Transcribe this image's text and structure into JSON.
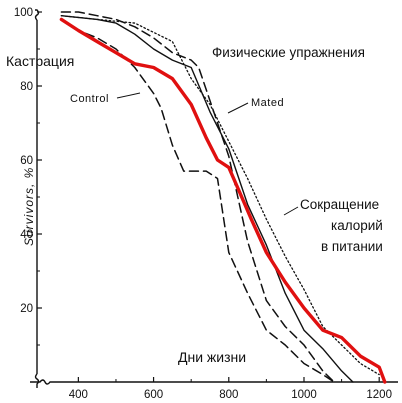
{
  "chart_data": {
    "type": "line",
    "title": "",
    "xlabel": "Дни жизни",
    "ylabel": "Survivors, %",
    "xlim": [
      290,
      1250
    ],
    "ylim": [
      0,
      100
    ],
    "x_ticks": [
      "400",
      "600",
      "800",
      "1000",
      "1200"
    ],
    "y_ticks": [
      "20",
      "40",
      "60",
      "80",
      "100"
    ],
    "grid": false,
    "series": [
      {
        "name": "Кастрация",
        "color": "#e01010",
        "style": "solid-thick",
        "x": [
          355,
          400,
          450,
          500,
          550,
          600,
          650,
          700,
          740,
          770,
          800,
          830,
          860,
          900,
          950,
          1000,
          1050,
          1100,
          1150,
          1200,
          1215
        ],
        "y": [
          98,
          95,
          92,
          89,
          86,
          85,
          82,
          75,
          66,
          60,
          58,
          51,
          44,
          35,
          27,
          20,
          14,
          12,
          7,
          4,
          0
        ]
      },
      {
        "name": "Control",
        "color": "#111111",
        "style": "dashed",
        "x": [
          355,
          400,
          450,
          500,
          550,
          600,
          620,
          650,
          680,
          700,
          740,
          770,
          800,
          850,
          900,
          950,
          1000,
          1050,
          1080
        ],
        "y": [
          98,
          95,
          93,
          90,
          85,
          78,
          74,
          64,
          57,
          57,
          57,
          55,
          35,
          24,
          14,
          10,
          5,
          2,
          0
        ]
      },
      {
        "name": "Физические упражнения",
        "color": "#111111",
        "style": "dashed",
        "x": [
          355,
          400,
          450,
          500,
          550,
          600,
          650,
          700,
          720,
          750,
          800,
          850,
          900,
          950,
          1000,
          1050,
          1080
        ],
        "y": [
          100,
          100,
          99,
          98,
          96,
          93,
          89,
          87,
          85,
          76,
          61,
          38,
          22,
          15,
          10,
          3,
          0
        ]
      },
      {
        "name": "Mated",
        "color": "#111111",
        "style": "solid-thin",
        "x": [
          355,
          450,
          500,
          550,
          600,
          650,
          700,
          750,
          800,
          850,
          900,
          950,
          1000,
          1050,
          1100,
          1130
        ],
        "y": [
          99,
          98,
          97,
          94,
          90,
          87,
          85,
          73,
          63,
          48,
          37,
          24,
          14,
          9,
          3,
          0
        ]
      },
      {
        "name": "Сокращение калорий в питании",
        "color": "#111111",
        "style": "dotted",
        "x": [
          355,
          450,
          550,
          650,
          700,
          750,
          800,
          850,
          900,
          950,
          1000,
          1050,
          1100,
          1150,
          1200
        ],
        "y": [
          99,
          98,
          97,
          92,
          82,
          75,
          65,
          55,
          44,
          34,
          25,
          15,
          10,
          5,
          2
        ]
      }
    ]
  },
  "annotations": {
    "castration": "Кастрация",
    "exercise": "Физические упражнения",
    "control": "Control",
    "mated": "Mated",
    "caloric_1": "Сокращение",
    "caloric_2": "калорий",
    "caloric_3": "в питании",
    "xlabel": "Дни жизни",
    "ylabel": "Survivors, %"
  },
  "colors": {
    "axis": "#111111",
    "highlight": "#e01010"
  }
}
